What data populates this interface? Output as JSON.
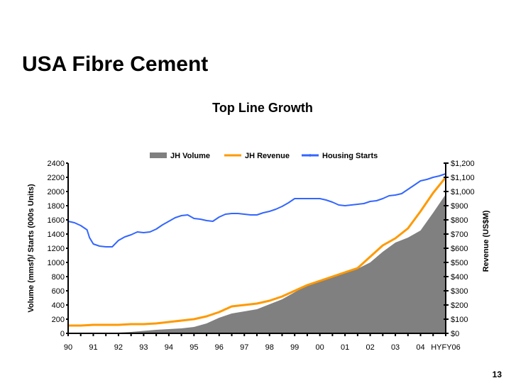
{
  "slide": {
    "title": "USA Fibre Cement",
    "page_number": "13"
  },
  "chart_data": {
    "type": "line",
    "title": "Top Line Growth",
    "xlabel": "",
    "ylabel": "Volume (mmsf)/ Starts (000s Units)",
    "y2label": "Revenue (US$M)",
    "ylim": [
      0,
      2400
    ],
    "y2lim": [
      0,
      1200
    ],
    "y_ticks": [
      "0",
      "200",
      "400",
      "600",
      "800",
      "1000",
      "1200",
      "1400",
      "1600",
      "1800",
      "2000",
      "2200",
      "2400"
    ],
    "y2_ticks": [
      "$0",
      "$100",
      "$200",
      "$300",
      "$400",
      "$500",
      "$600",
      "$700",
      "$800",
      "$900",
      "$1,000",
      "$1,100",
      "$1,200"
    ],
    "x_ticks": [
      "90",
      "91",
      "92",
      "93",
      "94",
      "95",
      "96",
      "97",
      "98",
      "99",
      "00",
      "01",
      "02",
      "03",
      "04",
      "HYFY06"
    ],
    "grid": false,
    "legend_position": "top",
    "series": [
      {
        "name": "JH Volume",
        "kind": "area",
        "axis": "left",
        "color": "#808080",
        "x": [
          0,
          1,
          1.5,
          2,
          2.5,
          3,
          3.5,
          4,
          4.5,
          5,
          5.5,
          6,
          6.5,
          7,
          7.5,
          8,
          8.5,
          9,
          9.5,
          10,
          10.5,
          11,
          11.5,
          12,
          12.5,
          13,
          13.5,
          14,
          14.5,
          15
        ],
        "values": [
          0,
          0,
          0,
          10,
          20,
          35,
          50,
          60,
          70,
          90,
          140,
          220,
          280,
          310,
          340,
          410,
          480,
          580,
          680,
          730,
          800,
          860,
          910,
          1000,
          1150,
          1280,
          1350,
          1450,
          1700,
          1960
        ]
      },
      {
        "name": "JH Revenue",
        "kind": "line",
        "axis": "right",
        "color": "#FF9900",
        "x": [
          0,
          0.5,
          1,
          1.5,
          2,
          2.5,
          3,
          3.5,
          4,
          4.5,
          5,
          5.5,
          6,
          6.5,
          7,
          7.5,
          8,
          8.5,
          9,
          9.5,
          10,
          10.5,
          11,
          11.5,
          12,
          12.5,
          13,
          13.5,
          14,
          14.5,
          15
        ],
        "values": [
          55,
          55,
          60,
          60,
          60,
          65,
          65,
          70,
          80,
          90,
          100,
          120,
          150,
          190,
          200,
          210,
          230,
          260,
          300,
          340,
          370,
          400,
          430,
          460,
          540,
          620,
          670,
          740,
          860,
          990,
          1100
        ]
      },
      {
        "name": "Housing Starts",
        "kind": "line",
        "axis": "left",
        "color": "#3366FF",
        "x": [
          0,
          0.25,
          0.5,
          0.75,
          0.85,
          1,
          1.25,
          1.5,
          1.75,
          2,
          2.25,
          2.5,
          2.75,
          3,
          3.25,
          3.5,
          3.75,
          4,
          4.25,
          4.5,
          4.75,
          5,
          5.25,
          5.5,
          5.75,
          6,
          6.25,
          6.5,
          6.75,
          7,
          7.25,
          7.5,
          7.75,
          8,
          8.25,
          8.5,
          8.75,
          9,
          9.25,
          9.5,
          9.75,
          10,
          10.25,
          10.5,
          10.75,
          11,
          11.25,
          11.5,
          11.75,
          12,
          12.25,
          12.5,
          12.75,
          13,
          13.25,
          13.5,
          13.75,
          14,
          14.25,
          14.5,
          14.75,
          15
        ],
        "values": [
          1580,
          1560,
          1520,
          1460,
          1350,
          1260,
          1230,
          1220,
          1220,
          1310,
          1360,
          1390,
          1430,
          1420,
          1430,
          1470,
          1530,
          1580,
          1630,
          1660,
          1670,
          1620,
          1610,
          1590,
          1580,
          1640,
          1680,
          1690,
          1690,
          1680,
          1670,
          1670,
          1700,
          1720,
          1750,
          1790,
          1840,
          1900,
          1900,
          1900,
          1900,
          1900,
          1880,
          1850,
          1810,
          1800,
          1810,
          1820,
          1830,
          1860,
          1870,
          1900,
          1940,
          1950,
          1970,
          2030,
          2090,
          2150,
          2170,
          2200,
          2220,
          2250
        ]
      }
    ]
  }
}
